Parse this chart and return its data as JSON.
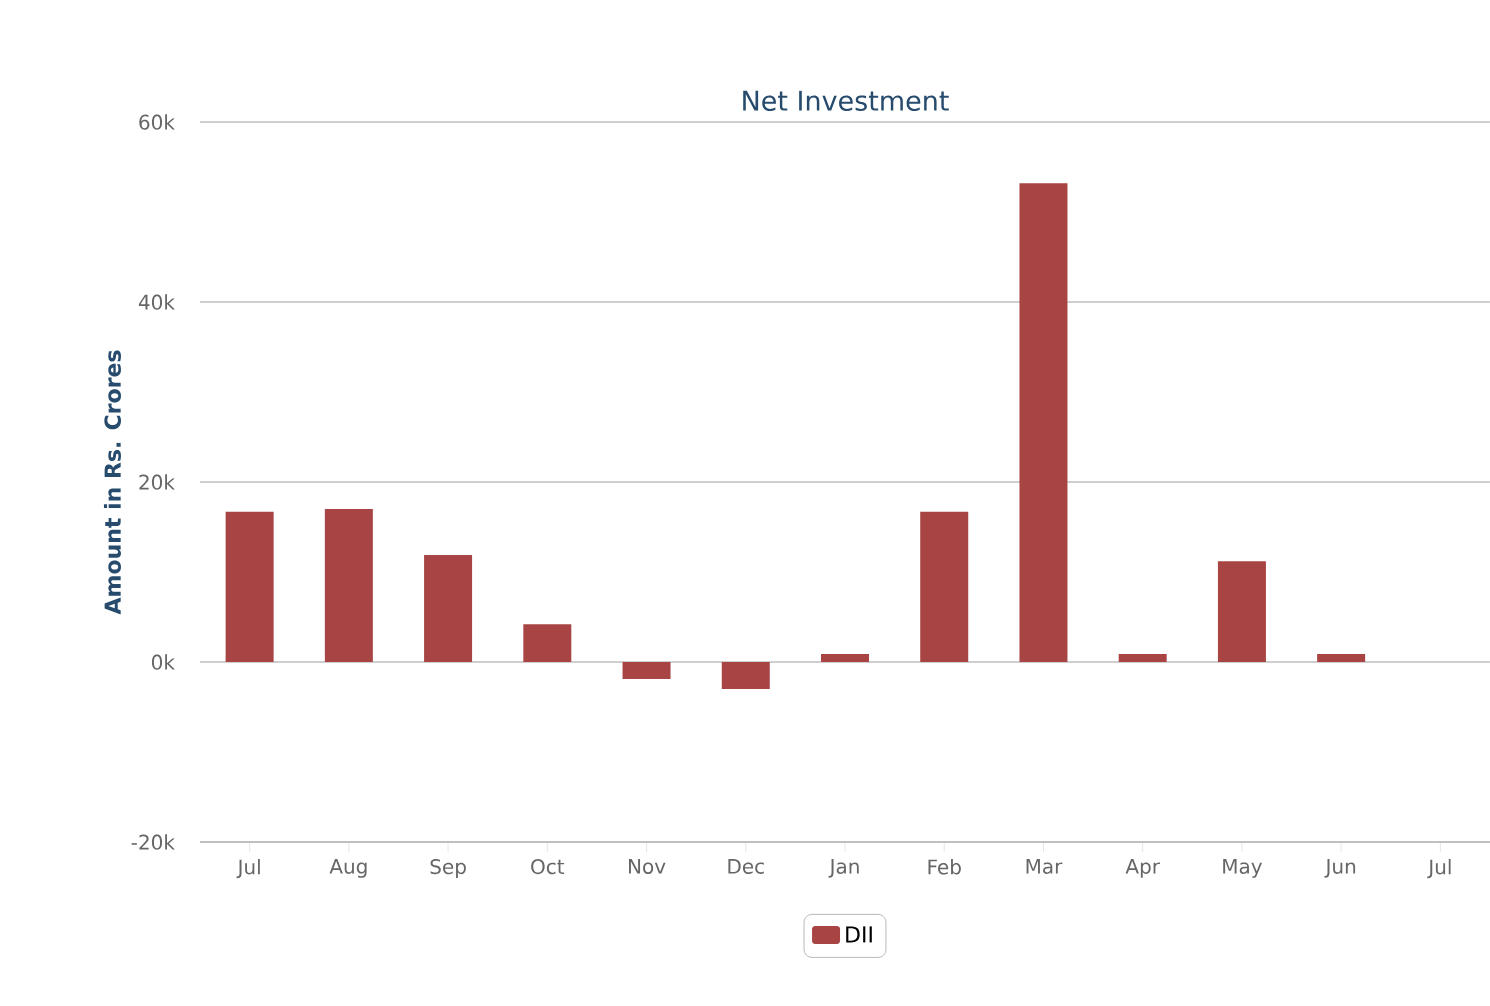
{
  "chart_data": {
    "type": "bar",
    "title": "Net Investment",
    "ylabel": "Amount in Rs. Crores",
    "categories": [
      "Jul",
      "Aug",
      "Sep",
      "Oct",
      "Nov",
      "Dec",
      "Jan",
      "Feb",
      "Mar",
      "Apr",
      "May",
      "Jun",
      "Jul"
    ],
    "series": [
      {
        "name": "DII",
        "color": "#a84444",
        "values": [
          16.7,
          17.0,
          11.9,
          4.2,
          -1.9,
          -3.0,
          0.9,
          16.7,
          53.2,
          0.9,
          11.2,
          0.9,
          null
        ]
      }
    ],
    "ylim": [
      -20,
      60
    ],
    "yticks": [
      {
        "value": -20,
        "label": "-20k"
      },
      {
        "value": 0,
        "label": "0k"
      },
      {
        "value": 20,
        "label": "20k"
      },
      {
        "value": 40,
        "label": "40k"
      },
      {
        "value": 60,
        "label": "60k"
      }
    ],
    "grid": "y",
    "legend": "bottom"
  }
}
